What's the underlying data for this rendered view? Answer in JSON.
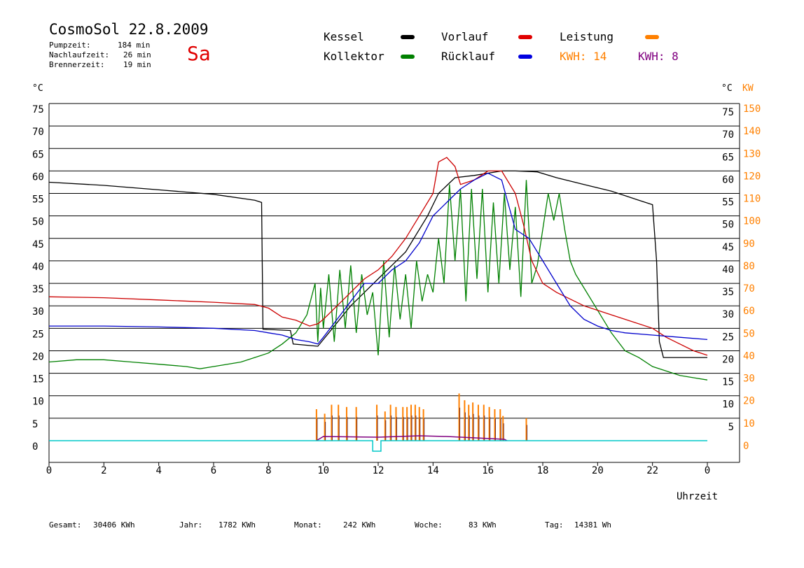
{
  "header": {
    "title": "CosmoSol 22.8.2009",
    "day": "Sa",
    "stats": [
      {
        "label": "Pumpzeit:",
        "value": "184 min"
      },
      {
        "label": "Nachlaufzeit:",
        "value": "26 min"
      },
      {
        "label": "Brennerzeit:",
        "value": "19 min"
      }
    ]
  },
  "legend": {
    "kessel": "Kessel",
    "kollektor": "Kollektor",
    "vorlauf": "Vorlauf",
    "ruecklauf": "Rücklauf",
    "leistung": "Leistung",
    "kwh_orange": "KWH: 14",
    "kwh_purple": "KWH: 8"
  },
  "footer": [
    {
      "label": "Gesamt:",
      "value": "30406 KWh"
    },
    {
      "label": "Jahr:",
      "value": "1782 KWh"
    },
    {
      "label": "Monat:",
      "value": "242 KWh"
    },
    {
      "label": "Woche:",
      "value": "83 KWh"
    },
    {
      "label": "Tag:",
      "value": "14381 Wh"
    }
  ],
  "chart_data": {
    "type": "line",
    "xlabel": "Uhrzeit",
    "xlim": [
      0,
      24
    ],
    "x_ticks": [
      "0",
      "2",
      "4",
      "6",
      "8",
      "10",
      "12",
      "14",
      "16",
      "18",
      "20",
      "22",
      "0"
    ],
    "ylim": [
      0,
      75
    ],
    "y_left_unit": "°C",
    "y_right_units": [
      "°C",
      "KW"
    ],
    "y_left_ticks": [
      "0",
      "5",
      "10",
      "15",
      "20",
      "25",
      "30",
      "35",
      "40",
      "45",
      "50",
      "55",
      "60",
      "65",
      "70",
      "75"
    ],
    "y_right_ticks": [
      "5",
      "10",
      "15",
      "20",
      "25",
      "30",
      "35",
      "40",
      "45",
      "50",
      "55",
      "60",
      "65",
      "70",
      "75"
    ],
    "kw_ticks": [
      "0",
      "10",
      "20",
      "30",
      "40",
      "50",
      "60",
      "70",
      "80",
      "90",
      "100",
      "110",
      "120",
      "130",
      "140",
      "150"
    ],
    "colors": {
      "kessel": "#000000",
      "kollektor": "#008000",
      "vorlauf": "#cc0000",
      "ruecklauf": "#0000cc",
      "leistung": "#ff8000",
      "leistung2": "#800080",
      "baseline": "#00c8c8"
    },
    "series": [
      {
        "name": "Kessel",
        "x": [
          0,
          2,
          4,
          6,
          7.5,
          7.75,
          7.8,
          8.8,
          8.9,
          9.8,
          10.2,
          11,
          12,
          13,
          13.8,
          14.2,
          14.8,
          15.5,
          16.5,
          17,
          17.8,
          18.5,
          19.5,
          20.5,
          21.5,
          22,
          22.15,
          22.25,
          22.4,
          24
        ],
        "y": [
          57.5,
          56.8,
          55.8,
          54.8,
          53.5,
          53,
          24.8,
          24.5,
          21.5,
          21,
          24,
          30,
          36,
          42,
          50,
          55,
          58.5,
          59,
          60,
          60,
          59.8,
          58.5,
          57,
          55.5,
          53.5,
          52.5,
          40,
          22,
          18.5,
          18.5
        ]
      },
      {
        "name": "Kollektor",
        "x": [
          0,
          1,
          2,
          3,
          4,
          5,
          5.5,
          6,
          7,
          8,
          8.5,
          9,
          9.4,
          9.7,
          9.8,
          9.9,
          10,
          10.2,
          10.4,
          10.6,
          10.8,
          11,
          11.2,
          11.4,
          11.6,
          11.8,
          12,
          12.2,
          12.4,
          12.6,
          12.8,
          13,
          13.2,
          13.4,
          13.6,
          13.8,
          14,
          14.2,
          14.4,
          14.6,
          14.8,
          15,
          15.2,
          15.4,
          15.6,
          15.8,
          16,
          16.2,
          16.4,
          16.6,
          16.8,
          17,
          17.2,
          17.4,
          17.6,
          17.8,
          18,
          18.2,
          18.4,
          18.6,
          18.8,
          19,
          19.2,
          19.5,
          20,
          20.5,
          21,
          21.5,
          22,
          22.5,
          23,
          23.5,
          24
        ],
        "y": [
          17.5,
          18,
          18,
          17.5,
          17,
          16.5,
          16,
          16.5,
          17.5,
          19.5,
          21.5,
          24,
          28,
          35,
          22,
          34,
          25,
          37,
          22,
          38,
          25,
          39,
          24,
          37,
          28,
          33,
          19,
          40,
          23,
          39,
          27,
          37,
          25,
          40,
          31,
          37,
          33,
          45,
          35,
          57,
          40,
          56,
          31,
          56,
          36,
          56,
          33,
          53,
          35,
          55,
          38,
          52,
          32,
          58,
          35,
          39,
          47,
          55,
          49,
          55,
          47,
          40,
          37,
          34,
          29,
          24,
          20,
          18.5,
          16.5,
          15.5,
          14.5,
          14,
          13.5
        ]
      },
      {
        "name": "Vorlauf",
        "x": [
          0,
          2,
          4,
          6,
          7.5,
          8,
          8.5,
          9,
          9.5,
          9.8,
          10,
          10.5,
          11,
          11.5,
          12,
          12.5,
          13,
          13.5,
          14,
          14.2,
          14.5,
          14.8,
          15,
          15.5,
          16,
          16.5,
          17,
          17.3,
          17.6,
          18,
          18.5,
          19,
          19.5,
          20,
          21,
          22,
          22.5,
          23,
          23.5,
          24
        ],
        "y": [
          32,
          31.8,
          31.3,
          30.8,
          30.3,
          29.5,
          27.5,
          26.8,
          25.5,
          26,
          27,
          30,
          33,
          36,
          38,
          41,
          45,
          50,
          55,
          62,
          63,
          61,
          57,
          58,
          60,
          60,
          55,
          48,
          40,
          35,
          33,
          31.5,
          30,
          29,
          27,
          25,
          23,
          21.5,
          20,
          19
        ]
      },
      {
        "name": "Rücklauf",
        "x": [
          0,
          2,
          4,
          6,
          7.5,
          8,
          8.5,
          9,
          9.5,
          9.8,
          10,
          10.5,
          11,
          11.5,
          12,
          12.5,
          13,
          13.5,
          14,
          14.5,
          15,
          15.5,
          16,
          16.5,
          17,
          17.5,
          18,
          18.5,
          19,
          19.5,
          20,
          20.5,
          21,
          22,
          23,
          24
        ],
        "y": [
          25.5,
          25.5,
          25.3,
          25,
          24.5,
          24,
          23.5,
          22.5,
          22,
          21.5,
          23,
          27,
          31,
          35,
          35,
          38,
          40,
          44,
          50,
          53,
          56,
          58,
          59.5,
          58,
          47,
          45,
          40,
          35,
          30,
          27,
          25.5,
          24.5,
          24,
          23.5,
          23,
          22.5
        ]
      },
      {
        "name": "Leistung",
        "spikes": [
          {
            "x": 9.75,
            "kw": 14
          },
          {
            "x": 10.05,
            "kw": 12
          },
          {
            "x": 10.3,
            "kw": 16
          },
          {
            "x": 10.55,
            "kw": 16
          },
          {
            "x": 10.85,
            "kw": 15
          },
          {
            "x": 11.2,
            "kw": 15
          },
          {
            "x": 11.95,
            "kw": 16
          },
          {
            "x": 12.25,
            "kw": 13
          },
          {
            "x": 12.45,
            "kw": 16
          },
          {
            "x": 12.65,
            "kw": 15
          },
          {
            "x": 12.9,
            "kw": 15
          },
          {
            "x": 13.05,
            "kw": 15
          },
          {
            "x": 13.2,
            "kw": 16
          },
          {
            "x": 13.35,
            "kw": 16
          },
          {
            "x": 13.5,
            "kw": 15
          },
          {
            "x": 13.65,
            "kw": 14
          },
          {
            "x": 14.95,
            "kw": 21
          },
          {
            "x": 15.15,
            "kw": 18
          },
          {
            "x": 15.3,
            "kw": 16
          },
          {
            "x": 15.45,
            "kw": 17
          },
          {
            "x": 15.65,
            "kw": 16
          },
          {
            "x": 15.85,
            "kw": 16
          },
          {
            "x": 16.05,
            "kw": 15
          },
          {
            "x": 16.25,
            "kw": 14
          },
          {
            "x": 16.45,
            "kw": 14
          },
          {
            "x": 16.55,
            "kw": 11
          },
          {
            "x": 17.4,
            "kw": 10
          }
        ]
      }
    ]
  }
}
